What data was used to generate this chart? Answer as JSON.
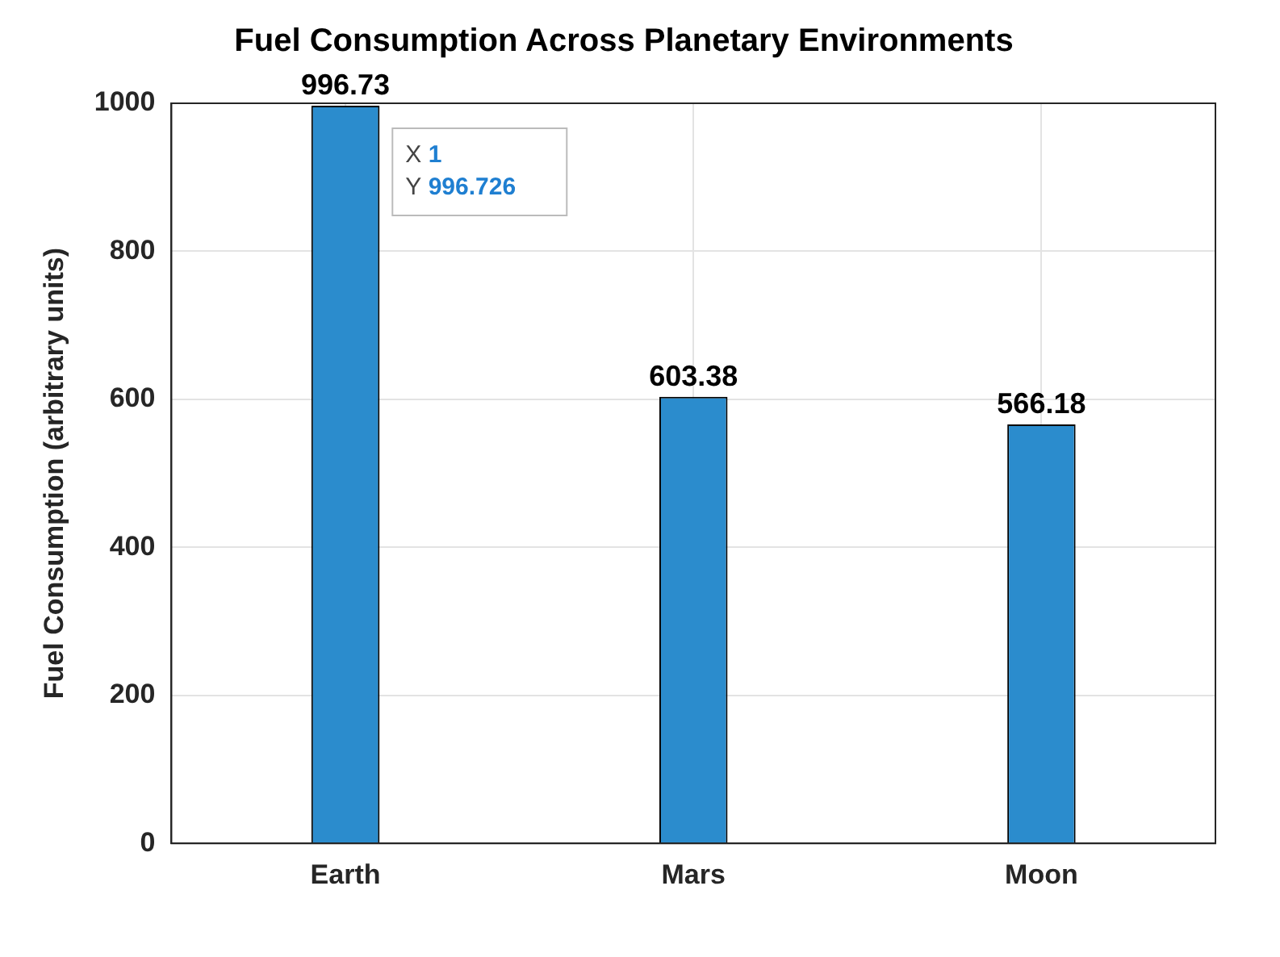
{
  "chart_data": {
    "type": "bar",
    "title": "Fuel Consumption Across Planetary Environments",
    "ylabel": "Fuel Consumption (arbitrary units)",
    "categories": [
      "Earth",
      "Mars",
      "Moon"
    ],
    "values": [
      996.73,
      603.38,
      566.18
    ],
    "value_labels": [
      "996.73",
      "603.38",
      "566.18"
    ],
    "color": "#2b8ccd",
    "ylim": [
      0,
      1000
    ],
    "yticks": [
      0,
      200,
      400,
      600,
      800,
      1000
    ],
    "grid": true,
    "legend": false,
    "annotations": [
      "X 1\nY 996.726"
    ]
  }
}
